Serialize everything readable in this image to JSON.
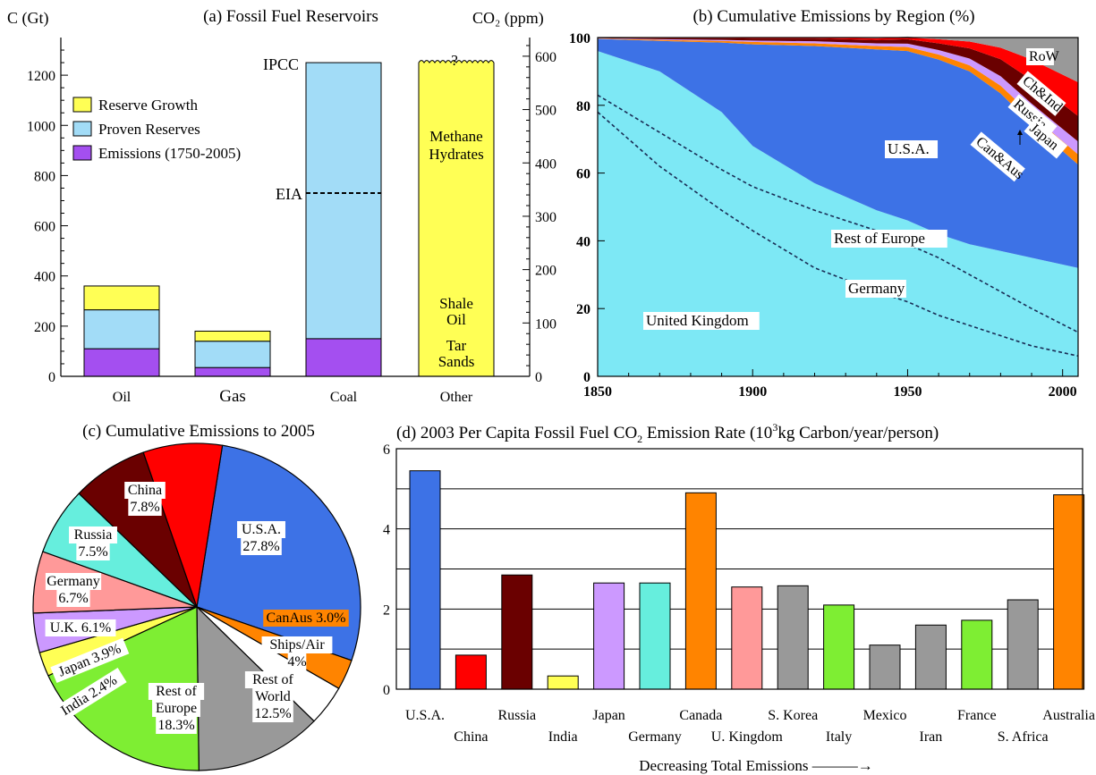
{
  "chart_data": [
    {
      "id": "a",
      "type": "bar",
      "title": "(a)  Fossil Fuel Reservoirs",
      "ylabel_left": "C (Gt)",
      "ylabel_right": "CO₂ (ppm)",
      "ylim": [
        0,
        1350
      ],
      "yticks": [
        0,
        200,
        400,
        600,
        800,
        1000,
        1200
      ],
      "ylim_right": [
        0,
        635
      ],
      "yticks_right": [
        0,
        100,
        200,
        300,
        400,
        500,
        600
      ],
      "categories": [
        "Oil",
        "Gas",
        "Coal",
        "Other"
      ],
      "series": [
        {
          "name": "Emissions (1750-2005)",
          "color": "#a44ff0",
          "values": [
            110,
            35,
            150,
            0
          ]
        },
        {
          "name": "Proven Reserves",
          "color": "#a2dcf7",
          "values": [
            155,
            105,
            1100,
            0
          ]
        },
        {
          "name": "Reserve Growth",
          "color": "#ffff55",
          "values": [
            95,
            40,
            0,
            1250
          ]
        }
      ],
      "legend_position": "top-left",
      "annotations": {
        "ipcc": {
          "text": "IPCC",
          "value": 1250
        },
        "eia": {
          "text": "EIA",
          "value": 730
        },
        "question": "?",
        "methane": [
          "Methane",
          "Hydrates"
        ],
        "shale": [
          "Shale",
          "Oil"
        ],
        "tar": [
          "Tar",
          "Sands"
        ]
      }
    },
    {
      "id": "b",
      "type": "area",
      "title": "(b)  Cumulative Emissions by Region (%)",
      "xlim": [
        1850,
        2005
      ],
      "xticks": [
        1850,
        1900,
        1950,
        2000
      ],
      "ylim": [
        0,
        100
      ],
      "yticks": [
        0,
        20,
        40,
        60,
        80,
        100
      ],
      "x": [
        1850,
        1870,
        1890,
        1900,
        1920,
        1940,
        1950,
        1960,
        1970,
        1980,
        1990,
        2005
      ],
      "series": [
        {
          "name": "United Kingdom",
          "color": "#7de8f5",
          "values": [
            96,
            90,
            78,
            68,
            57,
            49,
            46,
            42,
            39,
            37,
            35,
            32
          ]
        },
        {
          "name": "U.S.A.",
          "color": "#3d72e6",
          "values": [
            3.6,
            9,
            20.5,
            30,
            40.5,
            47.5,
            50,
            51.5,
            51,
            46.5,
            39.5,
            30.5
          ]
        },
        {
          "name": "Can&Aus",
          "color": "#ff8400",
          "values": [
            0.1,
            0.3,
            0.5,
            0.7,
            0.8,
            1,
            1.2,
            1.5,
            1.8,
            2.3,
            2.7,
            3
          ]
        },
        {
          "name": "Japan",
          "color": "#cc99ff",
          "values": [
            0.1,
            0.2,
            0.3,
            0.4,
            0.6,
            0.8,
            1,
            1.3,
            2,
            2.8,
            3.3,
            3.8
          ]
        },
        {
          "name": "Russia",
          "color": "#6a0000",
          "values": [
            0.1,
            0.3,
            0.5,
            0.6,
            0.8,
            1,
            1.3,
            2,
            3,
            5,
            7,
            7.5
          ]
        },
        {
          "name": "Ch&Ind",
          "color": "#ff0000",
          "values": [
            0.05,
            0.1,
            0.1,
            0.2,
            0.3,
            0.5,
            0.8,
            1.2,
            2,
            3.4,
            6,
            10
          ]
        },
        {
          "name": "RoW",
          "color": "#999999",
          "values": [
            0.05,
            0.1,
            0.1,
            0.1,
            0.2,
            0.2,
            0.4,
            0.5,
            1.2,
            3,
            6.5,
            13.2
          ]
        }
      ],
      "dashed_lines": [
        {
          "name": "Rest of Europe",
          "values": [
            83,
            72,
            61,
            56,
            49,
            43,
            39,
            35,
            30,
            25,
            20,
            13
          ]
        },
        {
          "name": "Germany",
          "values": [
            78,
            62,
            49,
            43,
            32,
            25,
            22,
            18,
            15,
            12,
            9,
            6
          ]
        }
      ],
      "labels": {
        "row": "RoW",
        "chind": "Ch&Ind",
        "russia": "Russia",
        "japan": "Japan",
        "canaus": "Can&Aus",
        "usa": "U.S.A.",
        "rest_of_europe": "Rest of Europe",
        "germany": "Germany",
        "uk": "United Kingdom"
      }
    },
    {
      "id": "c",
      "type": "pie",
      "title": "(c)  Cumulative Emissions to 2005",
      "slices": [
        {
          "name": "U.S.A.",
          "value": 27.8,
          "label": [
            "U.S.A.",
            "27.8%"
          ],
          "color": "#3d72e6"
        },
        {
          "name": "CanAus",
          "value": 3.0,
          "label": [
            "CanAus 3.0%"
          ],
          "color": "#ff8400"
        },
        {
          "name": "Ships/Air",
          "value": 4.0,
          "label": [
            "Ships/Air",
            "4%"
          ],
          "color": "#ffffff"
        },
        {
          "name": "Rest of World",
          "value": 12.5,
          "label": [
            "Rest of",
            "World",
            "12.5%"
          ],
          "color": "#999999"
        },
        {
          "name": "Rest of Europe",
          "value": 18.3,
          "label": [
            "Rest of",
            "Europe",
            "18.3%"
          ],
          "color": "#7eee33"
        },
        {
          "name": "India",
          "value": 2.4,
          "label": [
            "India 2.4%"
          ],
          "color": "#ffff55"
        },
        {
          "name": "Japan",
          "value": 3.9,
          "label": [
            "Japan 3.9%"
          ],
          "color": "#cc99ff"
        },
        {
          "name": "U.K.",
          "value": 6.1,
          "label": [
            "U.K. 6.1%"
          ],
          "color": "#ff9999"
        },
        {
          "name": "Germany",
          "value": 6.7,
          "label": [
            "Germany",
            "6.7%"
          ],
          "color": "#66eedd"
        },
        {
          "name": "Russia",
          "value": 7.5,
          "label": [
            "Russia",
            "7.5%"
          ],
          "color": "#6a0000"
        },
        {
          "name": "China",
          "value": 7.8,
          "label": [
            "China",
            "7.8%"
          ],
          "color": "#ff0000"
        }
      ]
    },
    {
      "id": "d",
      "type": "bar",
      "title": "(d)  2003 Per Capita Fossil Fuel CO",
      "title_sub": "2",
      "title_rest": " Emission Rate (10",
      "title_sup": "3",
      "title_end": "kg Carbon/year/person)",
      "ylim": [
        0,
        6
      ],
      "yticks": [
        0,
        2,
        4,
        6
      ],
      "xlabel": "Decreasing Total Emissions ———→",
      "categories": [
        "U.S.A.",
        "China",
        "Russia",
        "India",
        "Japan",
        "Germany",
        "Canada",
        "U. Kingdom",
        "S. Korea",
        "Italy",
        "Mexico",
        "Iran",
        "France",
        "S. Africa",
        "Australia"
      ],
      "values": [
        5.45,
        0.85,
        2.85,
        0.33,
        2.65,
        2.65,
        4.9,
        2.55,
        2.58,
        2.1,
        1.1,
        1.6,
        1.72,
        2.23,
        4.85
      ],
      "colors": [
        "#3d72e6",
        "#ff0000",
        "#6a0000",
        "#ffff55",
        "#cc99ff",
        "#66eedd",
        "#ff8400",
        "#ff9999",
        "#999999",
        "#7eee33",
        "#999999",
        "#999999",
        "#7eee33",
        "#999999",
        "#ff8400"
      ]
    }
  ]
}
